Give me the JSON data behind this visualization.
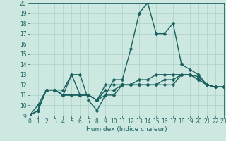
{
  "xlabel": "Humidex (Indice chaleur)",
  "xlim": [
    0,
    23
  ],
  "ylim": [
    9,
    20
  ],
  "xticks": [
    0,
    1,
    2,
    3,
    4,
    5,
    6,
    7,
    8,
    9,
    10,
    11,
    12,
    13,
    14,
    15,
    16,
    17,
    18,
    19,
    20,
    21,
    22,
    23
  ],
  "yticks": [
    9,
    10,
    11,
    12,
    13,
    14,
    15,
    16,
    17,
    18,
    19,
    20
  ],
  "background_color": "#cce8e0",
  "grid_color": "#aad0c8",
  "line_color": "#1a6060",
  "marker": "D",
  "markersize": 2.5,
  "linewidth": 1.0,
  "series": [
    [
      9,
      10,
      11.5,
      11.5,
      11,
      13,
      13,
      10.5,
      9.5,
      11,
      12.5,
      12.5,
      15.5,
      19,
      20,
      17,
      17,
      18,
      14,
      13.5,
      13,
      12,
      11.8,
      11.8
    ],
    [
      9,
      9.5,
      11.5,
      11.5,
      11.5,
      13,
      11,
      11,
      10.5,
      12,
      12,
      12,
      12,
      12.5,
      12.5,
      13,
      13,
      13,
      13,
      13,
      12.8,
      12,
      11.8,
      11.8
    ],
    [
      9,
      9.5,
      11.5,
      11.5,
      11,
      11,
      11,
      11,
      10.5,
      11.5,
      11.5,
      12,
      12,
      12,
      12,
      12,
      12.5,
      12.5,
      13,
      13,
      12.5,
      12,
      11.8,
      11.8
    ],
    [
      9,
      9.5,
      11.5,
      11.5,
      11,
      11,
      11,
      11,
      10.5,
      11,
      11,
      12,
      12,
      12,
      12,
      12,
      12,
      12,
      13,
      13,
      12.5,
      12,
      11.8,
      11.8
    ]
  ]
}
